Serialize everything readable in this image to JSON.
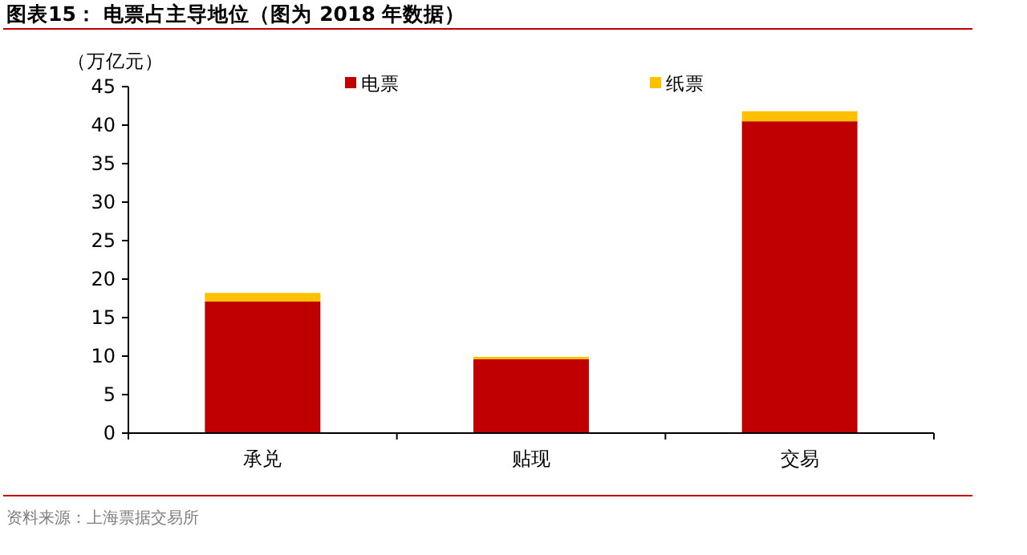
{
  "chart_data": {
    "type": "bar",
    "title": "图表15：  电票占主导地位（图为 2018 年数据）",
    "ylabel": "（万亿元）",
    "annotations": [
      "资料来源：上海票据交易所"
    ],
    "categories": [
      "承兑",
      "贴现",
      "交易"
    ],
    "stacked": true,
    "series": [
      {
        "name": "电票",
        "color": "#c00000",
        "values": [
          17.1,
          9.6,
          40.5
        ]
      },
      {
        "name": "纸票",
        "color": "#ffc000",
        "values": [
          1.1,
          0.3,
          1.3
        ]
      }
    ],
    "ylim": [
      0,
      45
    ],
    "yticks": [
      0,
      5,
      10,
      15,
      20,
      25,
      30,
      35,
      40,
      45
    ],
    "grid": false,
    "legend": "top"
  }
}
